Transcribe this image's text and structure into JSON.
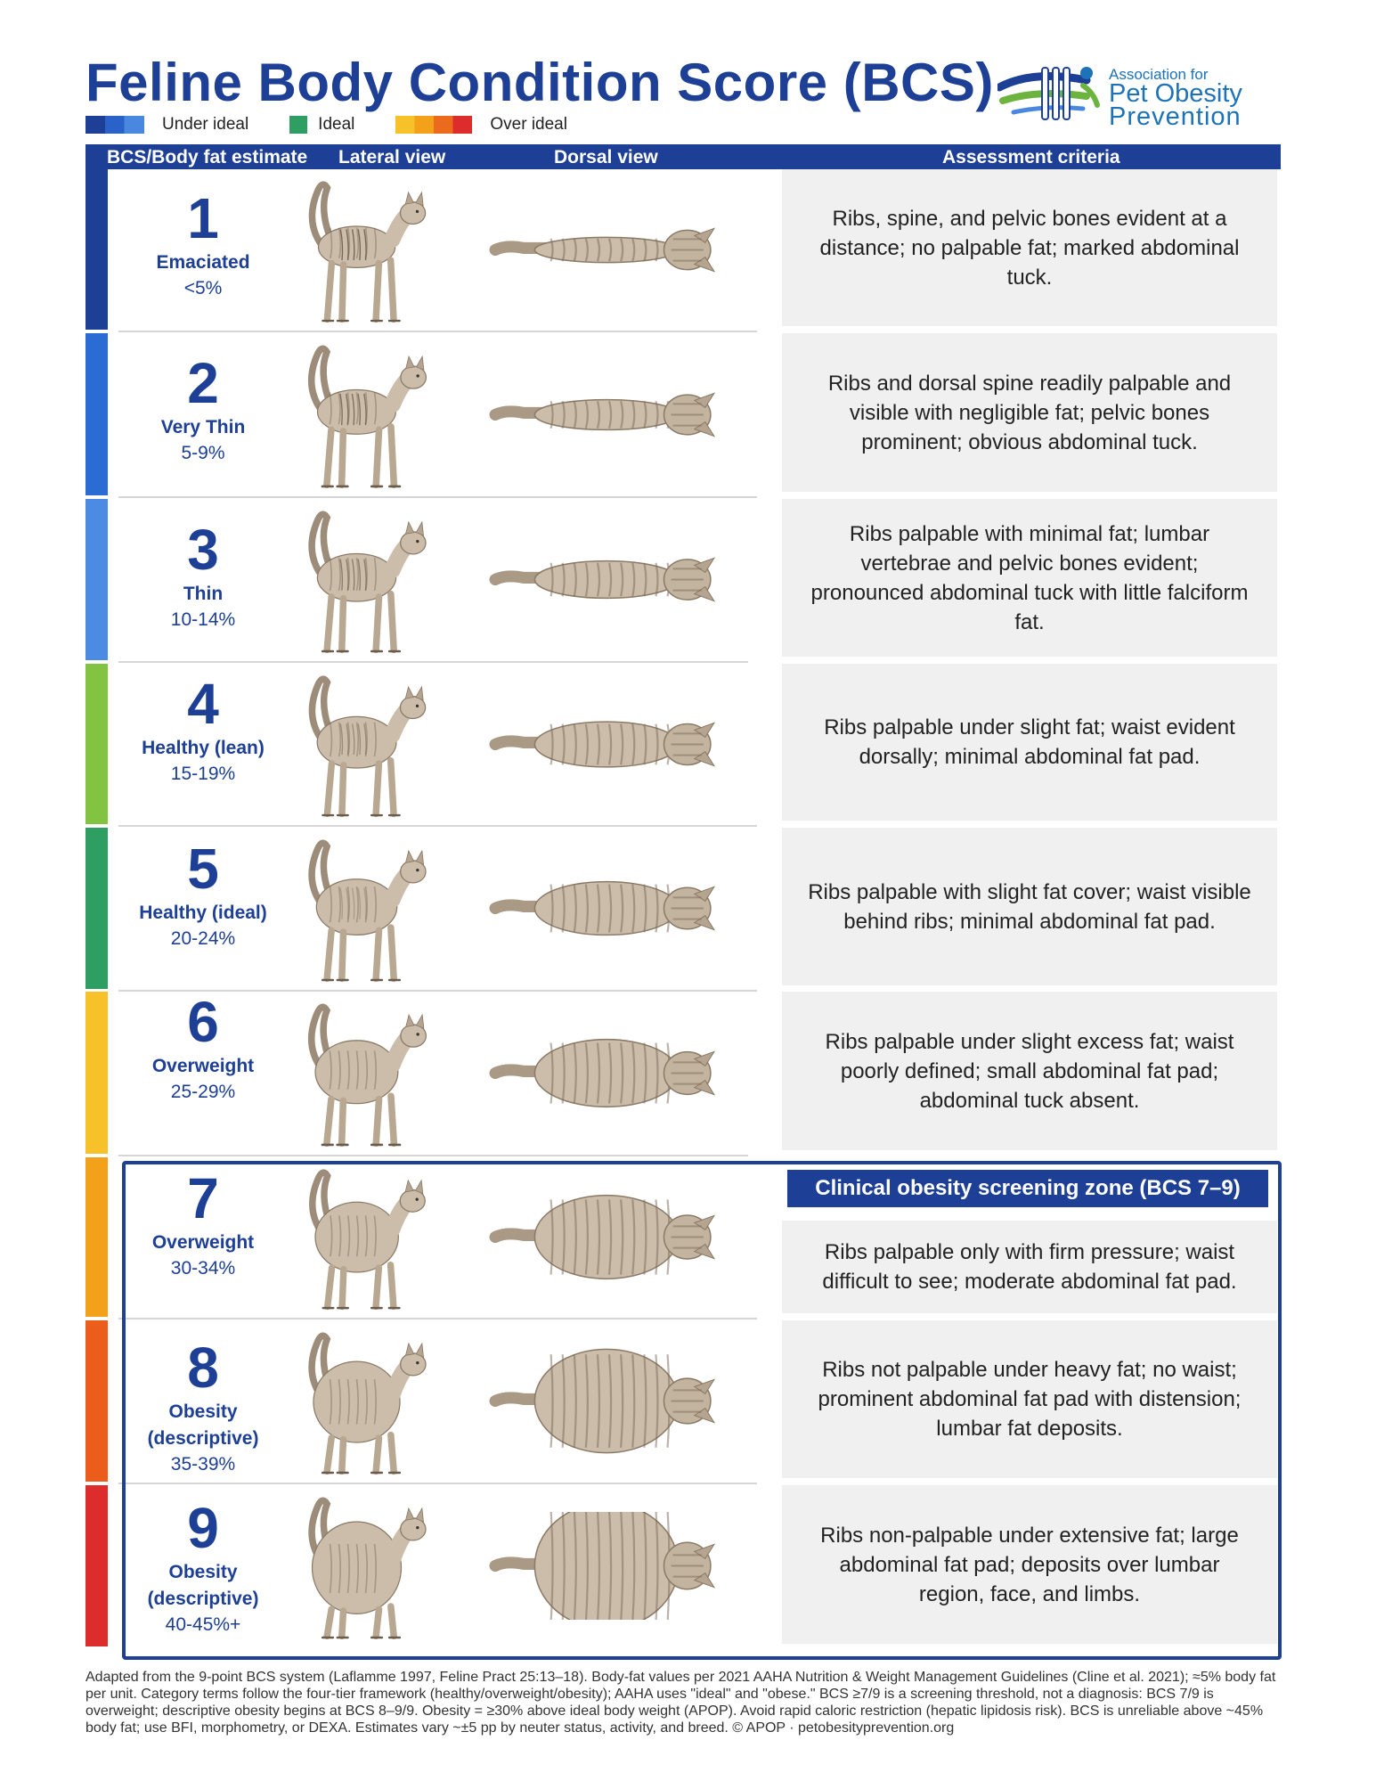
{
  "title": "Feline Body Condition Score (BCS)",
  "legend": {
    "under": "Under ideal",
    "ideal": "Ideal",
    "over": "Over ideal",
    "under_colors": [
      "#1d3f95",
      "#2a62c9",
      "#4a88e0"
    ],
    "ideal_colors": [
      "#2e9e62"
    ],
    "over_colors": [
      "#f7c12a",
      "#f3a01b",
      "#ec6a1c",
      "#dd2c2c"
    ]
  },
  "logo": {
    "line1": "Association for",
    "line2": "Pet Obesity",
    "line3": "Prevention"
  },
  "header": {
    "col1": "BCS/Body fat estimate",
    "col2": "Lateral view",
    "col3": "Dorsal view",
    "col4": "Assessment criteria"
  },
  "rows": [
    {
      "score": "1",
      "name": "Emaciated",
      "name2": "",
      "fat": "<5%",
      "criteria": "Ribs, spine, and pelvic bones evident at a distance; no palpable fat; marked abdominal tuck.",
      "color": "#1d3f95"
    },
    {
      "score": "2",
      "name": "Very Thin",
      "name2": "",
      "fat": "5-9%",
      "criteria": "Ribs and dorsal spine readily palpable and visible with negligible fat; pelvic bones prominent; obvious abdominal tuck.",
      "color": "#2a6bd4"
    },
    {
      "score": "3",
      "name": "Thin",
      "name2": "",
      "fat": "10-14%",
      "criteria": "Ribs palpable with minimal fat; lumbar vertebrae and pelvic bones evident; pronounced abdominal tuck with little falciform fat.",
      "color": "#4b8be3"
    },
    {
      "score": "4",
      "name": "Healthy (lean)",
      "name2": "",
      "fat": "15-19%",
      "criteria": "Ribs palpable under slight fat; waist evident dorsally; minimal abdominal fat pad.",
      "color": "#82c341"
    },
    {
      "score": "5",
      "name": "Healthy (ideal)",
      "name2": "",
      "fat": "20-24%",
      "criteria": "Ribs palpable with slight fat cover; waist visible behind ribs; minimal abdominal fat pad.",
      "color": "#2e9e62"
    },
    {
      "score": "6",
      "name": "Overweight",
      "name2": "",
      "fat": "25-29%",
      "criteria": "Ribs palpable under slight excess fat; waist poorly defined; small abdominal fat pad; abdominal tuck absent.",
      "color": "#f7c12a"
    },
    {
      "score": "7",
      "name": "Overweight",
      "name2": "",
      "fat": "30-34%",
      "criteria": "Ribs palpable only with firm pressure; waist difficult to see; moderate abdominal fat pad.",
      "color": "#f3a01b"
    },
    {
      "score": "8",
      "name": "Obesity",
      "name2": "(descriptive)",
      "fat": "35-39%",
      "criteria": "Ribs not palpable under heavy fat; no waist; prominent abdominal fat pad with distension; lumbar fat deposits.",
      "color": "#ec5d1c"
    },
    {
      "score": "9",
      "name": "Obesity",
      "name2": "(descriptive)",
      "fat": "40-45%+",
      "criteria": "Ribs non-palpable under extensive fat; large abdominal fat pad; deposits over lumbar region, face, and limbs.",
      "color": "#dd2c2c"
    }
  ],
  "zone_label": "Clinical obesity screening zone (BCS 7–9)",
  "footnote": "Adapted from the 9-point BCS system (Laflamme 1997, Feline Pract 25:13–18). Body-fat values per 2021 AAHA Nutrition & Weight Management Guidelines (Cline et al. 2021); ≈5% body fat per unit. Category terms follow the four-tier framework (healthy/overweight/obesity); AAHA uses \"ideal\" and \"obese.\" BCS ≥7/9 is a screening threshold, not a diagnosis: BCS 7/9 is overweight; descriptive obesity begins at BCS 8–9/9. Obesity = ≥30% above ideal body weight (APOP). Avoid rapid caloric restriction (hepatic lipidosis risk). BCS is unreliable above ~45% body fat; use BFI, morphometry, or DEXA. Estimates vary ~±5 pp by neuter status, activity, and breed. © APOP · petobesityprevention.org"
}
